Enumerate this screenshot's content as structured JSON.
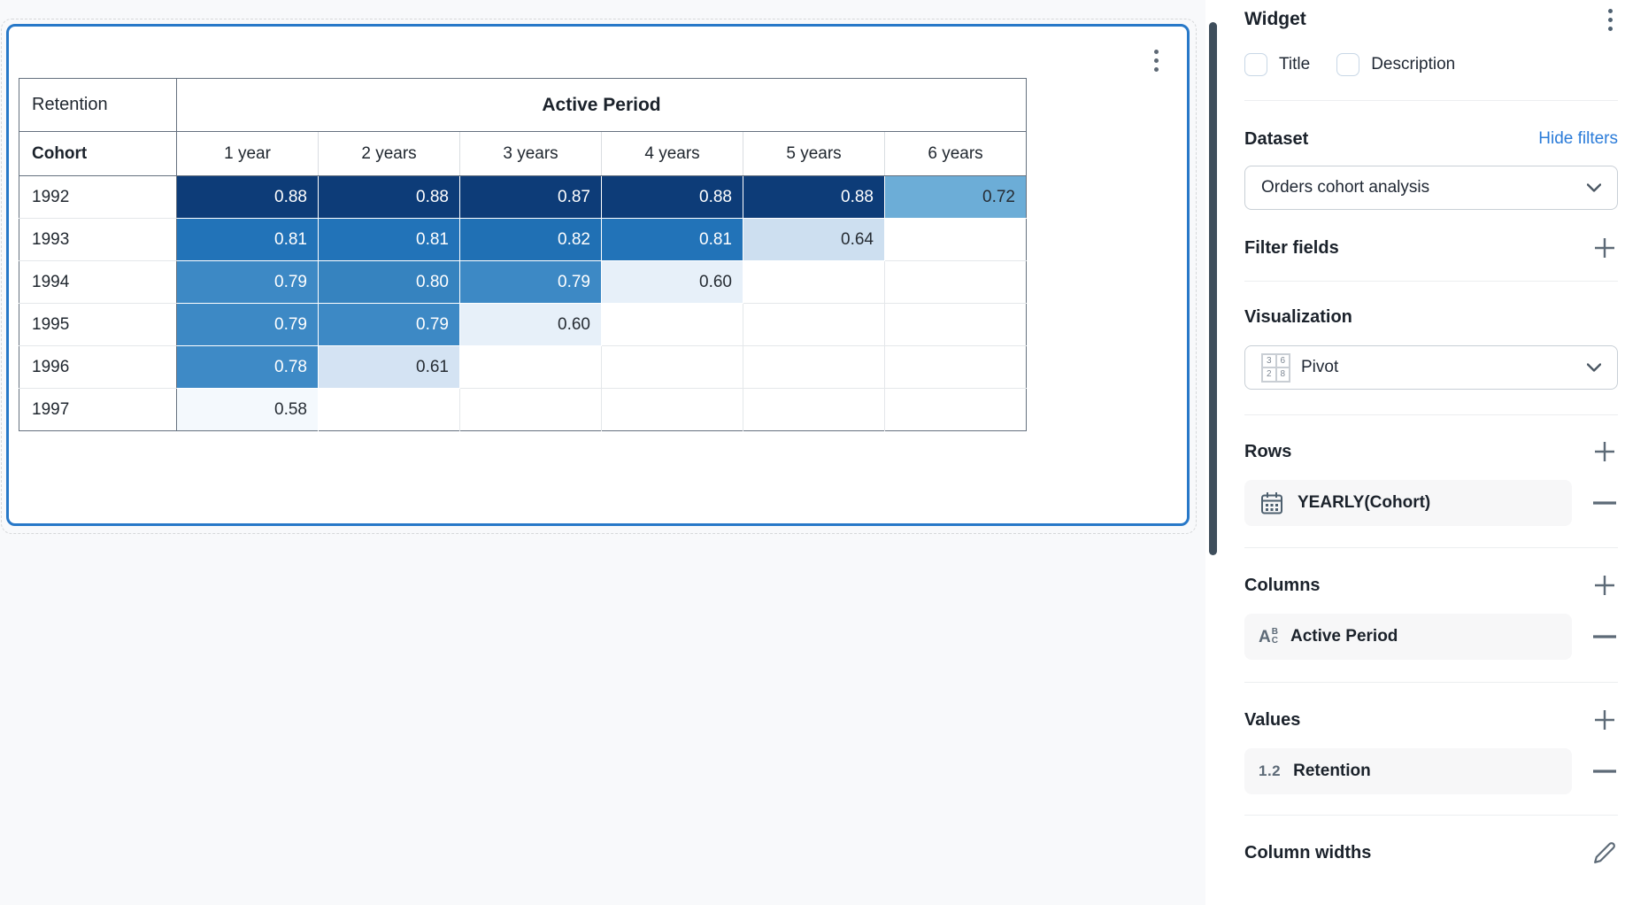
{
  "colors": {
    "widget_selection_border": "#2778c8",
    "link_blue": "#2b7cd9",
    "canvas_bg": "#f8f9fb",
    "panel_bg": "#ffffff",
    "scrollbar_thumb": "#3e4e5c",
    "slate_icon": "#5d6a77"
  },
  "icons": {
    "widget_menu": "kebab-menu-icon",
    "panel_menu": "kebab-menu-icon",
    "dataset_dropdown": "chevron-down-icon",
    "visualization_dropdown": "chevron-down-icon",
    "add": "plus-icon",
    "remove": "minus-icon",
    "rows_field": "calendar-icon",
    "columns_field": "text-field-abc-icon",
    "values_field": "number-1.2-icon",
    "column_widths": "pencil-icon",
    "visualization_type": "pivot-grid-icon"
  },
  "pivot": {
    "measure_label": "Retention",
    "column_group_label": "Active Period",
    "row_dimension_label": "Cohort",
    "column_headers": [
      "1 year",
      "2 years",
      "3 years",
      "4 years",
      "5 years",
      "6 years"
    ],
    "rows": [
      {
        "cohort": "1992",
        "values": [
          "0.88",
          "0.88",
          "0.87",
          "0.88",
          "0.88",
          "0.72"
        ]
      },
      {
        "cohort": "1993",
        "values": [
          "0.81",
          "0.81",
          "0.82",
          "0.81",
          "0.64",
          ""
        ]
      },
      {
        "cohort": "1994",
        "values": [
          "0.79",
          "0.80",
          "0.79",
          "0.60",
          "",
          ""
        ]
      },
      {
        "cohort": "1995",
        "values": [
          "0.79",
          "0.79",
          "0.60",
          "",
          "",
          ""
        ]
      },
      {
        "cohort": "1996",
        "values": [
          "0.78",
          "0.61",
          "",
          "",
          "",
          ""
        ]
      },
      {
        "cohort": "1997",
        "values": [
          "0.58",
          "",
          "",
          "",
          "",
          ""
        ]
      }
    ],
    "cell_colors": {
      "0.88": "#0d3c78",
      "0.87": "#0d3c78",
      "0.82": "#2070b4",
      "0.81": "#2273b8",
      "0.80": "#3683bf",
      "0.79": "#3d89c5",
      "0.78": "#3e8ac6",
      "0.72": "#6cadd7",
      "0.64": "#cddff0",
      "0.61": "#d4e3f3",
      "0.60": "#e7f0f9",
      "0.58": "#f4f9fd"
    },
    "white_text_threshold": 0.78
  },
  "panel": {
    "title": "Widget",
    "title_checkbox": {
      "label": "Title",
      "checked": false
    },
    "description_checkbox": {
      "label": "Description",
      "checked": false
    },
    "dataset": {
      "heading": "Dataset",
      "action": "Hide filters",
      "selected": "Orders cohort analysis"
    },
    "filter_fields": {
      "heading": "Filter fields"
    },
    "visualization": {
      "heading": "Visualization",
      "selected": "Pivot",
      "icon_digits": [
        "3",
        "6",
        "2",
        "8"
      ]
    },
    "rows": {
      "heading": "Rows",
      "item": {
        "label": "YEARLY(Cohort)",
        "icon": "calendar-icon"
      }
    },
    "columns": {
      "heading": "Columns",
      "item": {
        "label": "Active Period",
        "icon": "text-field-abc-icon",
        "icon_letters": [
          "A",
          "B",
          "C"
        ]
      }
    },
    "values": {
      "heading": "Values",
      "item": {
        "label": "Retention",
        "icon": "number-icon",
        "icon_text": "1.2"
      }
    },
    "column_widths": {
      "heading": "Column widths"
    }
  }
}
